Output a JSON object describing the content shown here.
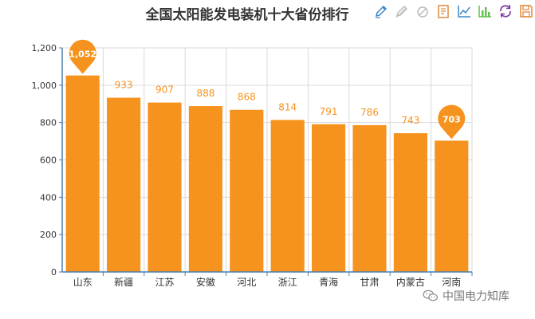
{
  "chart_data": {
    "type": "bar",
    "title": "全国太阳能发电装机十大省份排行",
    "xlabel": "",
    "ylabel": "",
    "categories": [
      "山东",
      "新疆",
      "江苏",
      "安徽",
      "河北",
      "浙江",
      "青海",
      "甘肃",
      "内蒙古",
      "河南"
    ],
    "values": [
      1052,
      933,
      907,
      888,
      868,
      814,
      791,
      786,
      743,
      703
    ],
    "value_labels": [
      "1,052",
      "933",
      "907",
      "888",
      "868",
      "814",
      "791",
      "786",
      "743",
      "703"
    ],
    "ylim": [
      0,
      1200
    ],
    "yticks": [
      0,
      200,
      400,
      600,
      800,
      1000,
      1200
    ],
    "ytick_labels": [
      "0",
      "200",
      "400",
      "600",
      "800",
      "1,000",
      "1,200"
    ],
    "grid": true,
    "markpoints": [
      "max",
      "min"
    ],
    "bar_color": "#f5931e",
    "label_color": "#f5931e",
    "marker_color": "#f5931e",
    "axis_color": "#4a7fb0",
    "grid_color": "#d9d9d9"
  },
  "toolbox": {
    "items": [
      "mark-icon",
      "mark-undo-icon",
      "mark-clear-icon",
      "data-view-icon",
      "line-chart-icon",
      "bar-chart-icon",
      "restore-icon",
      "save-image-icon"
    ],
    "colors": [
      "#3c86c8",
      "#bbbbbb",
      "#bbbbbb",
      "#e08a3c",
      "#3c86c8",
      "#5fbf4f",
      "#7e3aa6",
      "#e08a3c"
    ]
  },
  "watermark": {
    "text": "中国电力知库"
  }
}
